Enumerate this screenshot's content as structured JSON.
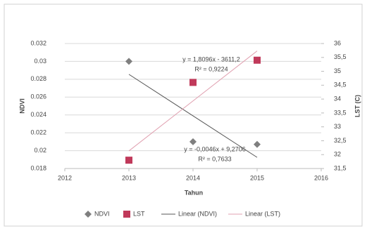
{
  "chart_data": {
    "type": "scatter",
    "x": [
      2013,
      2014,
      2015
    ],
    "xlim": [
      2012,
      2016
    ],
    "xticks": [
      2012,
      2013,
      2014,
      2015,
      2016
    ],
    "x_label": "Tahun",
    "y_label": "NDVI",
    "y2_label": "LST (C)",
    "ylim": [
      0.018,
      0.032
    ],
    "yticks": [
      0.018,
      0.02,
      0.022,
      0.024,
      0.026,
      0.028,
      0.03,
      0.032
    ],
    "y2lim": [
      31.5,
      36
    ],
    "y2ticks": [
      {
        "value": 31.5,
        "label": "31,5"
      },
      {
        "value": 32,
        "label": "32"
      },
      {
        "value": 32.5,
        "label": "32,5"
      },
      {
        "value": 33,
        "label": "33"
      },
      {
        "value": 33.5,
        "label": "33,5"
      },
      {
        "value": 34,
        "label": "34"
      },
      {
        "value": 34.5,
        "label": "34,5"
      },
      {
        "value": 35,
        "label": "35"
      },
      {
        "value": 35.5,
        "label": "35,5"
      },
      {
        "value": 36,
        "label": "36"
      }
    ],
    "grid": true,
    "series": [
      {
        "name": "NDVI",
        "color": "#7f7f7f",
        "marker": "diamond",
        "values": [
          0.03,
          0.021,
          0.0207
        ]
      },
      {
        "name": "LST",
        "color": "#c0395a",
        "marker": "square",
        "axis": "y2",
        "values": [
          31.8,
          34.6,
          35.4
        ]
      }
    ],
    "trendlines": [
      {
        "name": "Linear (NDVI)",
        "color": "#555555",
        "equation": "y = -0,0046x + 9,2706",
        "r2": "R² = 0,7633"
      },
      {
        "name": "Linear (LST)",
        "color": "#e0a0b0",
        "equation": "y = 1,8096x - 3611,2",
        "r2": "R² = 0,9224"
      }
    ],
    "legend": "bottom"
  }
}
